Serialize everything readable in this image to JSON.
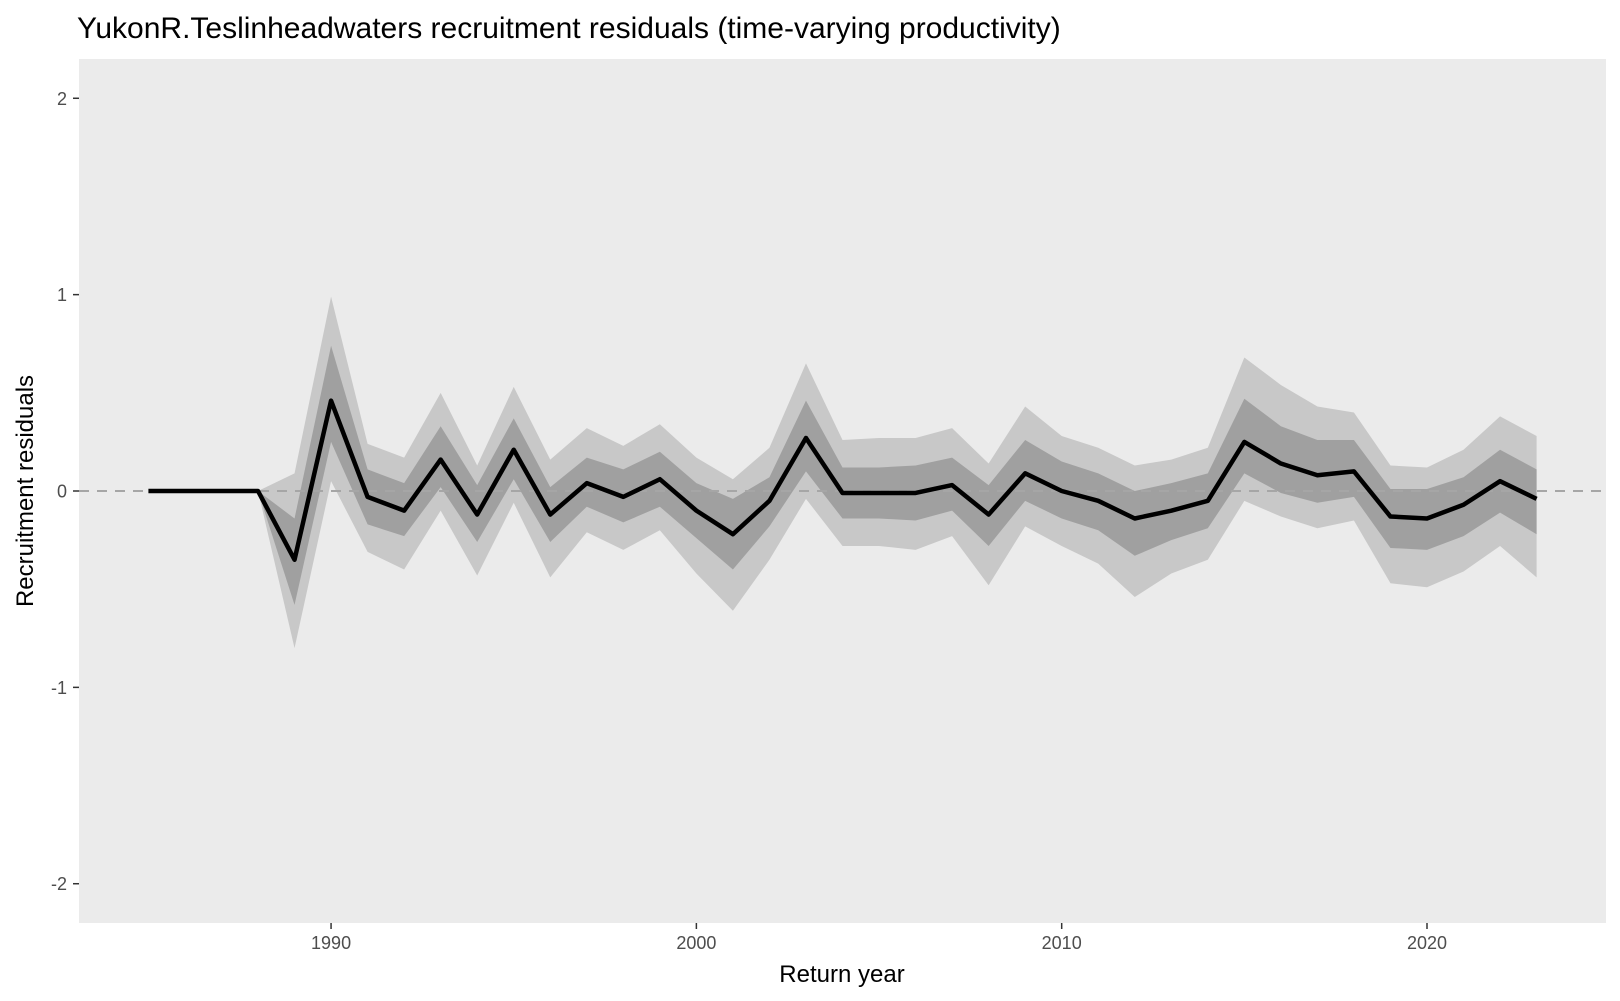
{
  "chart_data": {
    "type": "line",
    "title": "YukonR.Teslinheadwaters recruitment residuals (time-varying productivity)",
    "xlabel": "Return year",
    "ylabel": "Recruitment residuals",
    "xlim": [
      1983.1,
      2024.9
    ],
    "ylim": [
      -2.2,
      2.2
    ],
    "x_ticks": [
      1990,
      2000,
      2010,
      2020
    ],
    "y_ticks": [
      -2,
      -1,
      0,
      1,
      2
    ],
    "y_tick_labels": [
      "-2",
      "-1",
      "0",
      "1",
      "2"
    ],
    "grid": false,
    "legend": "none",
    "reference_line": {
      "y": 0,
      "style": "dashed"
    },
    "colors": {
      "panel": "#ebebeb",
      "outer_band": "#c8c8c8",
      "inner_band": "#a0a0a0",
      "median_line": "#000000",
      "reference_line": "#a6a6a6"
    },
    "x": [
      1985,
      1986,
      1987,
      1988,
      1989,
      1990,
      1991,
      1992,
      1993,
      1994,
      1995,
      1996,
      1997,
      1998,
      1999,
      2000,
      2001,
      2002,
      2003,
      2004,
      2005,
      2006,
      2007,
      2008,
      2009,
      2010,
      2011,
      2012,
      2013,
      2014,
      2015,
      2016,
      2017,
      2018,
      2019,
      2020,
      2021,
      2022,
      2023
    ],
    "series": [
      {
        "values": [
          0,
          0,
          0,
          0,
          -0.35,
          0.46,
          -0.03,
          -0.1,
          0.16,
          -0.12,
          0.21,
          -0.12,
          0.04,
          -0.03,
          0.06,
          -0.1,
          -0.22,
          -0.05,
          0.27,
          -0.01,
          -0.01,
          -0.01,
          0.03,
          -0.12,
          0.09,
          0,
          -0.05,
          -0.14,
          -0.1,
          -0.05,
          0.25,
          0.14,
          0.08,
          0.1,
          -0.13,
          -0.14,
          -0.07,
          0.05,
          -0.04
        ],
        "inner_lower": [
          0,
          0,
          0,
          0,
          -0.58,
          0.25,
          -0.17,
          -0.23,
          0.02,
          -0.26,
          0.06,
          -0.26,
          -0.08,
          -0.16,
          -0.08,
          -0.24,
          -0.4,
          -0.18,
          0.1,
          -0.14,
          -0.14,
          -0.15,
          -0.1,
          -0.28,
          -0.05,
          -0.14,
          -0.2,
          -0.33,
          -0.25,
          -0.19,
          0.09,
          -0.01,
          -0.06,
          -0.03,
          -0.29,
          -0.3,
          -0.23,
          -0.11,
          -0.22
        ],
        "inner_upper": [
          0,
          0,
          0,
          0,
          -0.14,
          0.74,
          0.11,
          0.04,
          0.33,
          0.03,
          0.37,
          0.02,
          0.17,
          0.11,
          0.2,
          0.04,
          -0.04,
          0.07,
          0.46,
          0.12,
          0.12,
          0.13,
          0.17,
          0.03,
          0.26,
          0.15,
          0.09,
          0,
          0.04,
          0.09,
          0.47,
          0.33,
          0.26,
          0.26,
          0.01,
          0.01,
          0.07,
          0.21,
          0.11
        ],
        "outer_lower": [
          0,
          0,
          0,
          0,
          -0.8,
          0.05,
          -0.31,
          -0.4,
          -0.1,
          -0.43,
          -0.06,
          -0.44,
          -0.21,
          -0.3,
          -0.2,
          -0.42,
          -0.61,
          -0.35,
          -0.04,
          -0.28,
          -0.28,
          -0.3,
          -0.23,
          -0.48,
          -0.18,
          -0.28,
          -0.37,
          -0.54,
          -0.42,
          -0.35,
          -0.05,
          -0.13,
          -0.19,
          -0.15,
          -0.47,
          -0.49,
          -0.41,
          -0.28,
          -0.44
        ],
        "outer_upper": [
          0,
          0,
          0,
          0,
          0.09,
          0.99,
          0.24,
          0.17,
          0.5,
          0.13,
          0.53,
          0.16,
          0.32,
          0.23,
          0.34,
          0.17,
          0.06,
          0.22,
          0.65,
          0.26,
          0.27,
          0.27,
          0.32,
          0.14,
          0.43,
          0.28,
          0.22,
          0.13,
          0.16,
          0.22,
          0.68,
          0.54,
          0.43,
          0.4,
          0.13,
          0.12,
          0.21,
          0.38,
          0.28
        ]
      }
    ]
  }
}
